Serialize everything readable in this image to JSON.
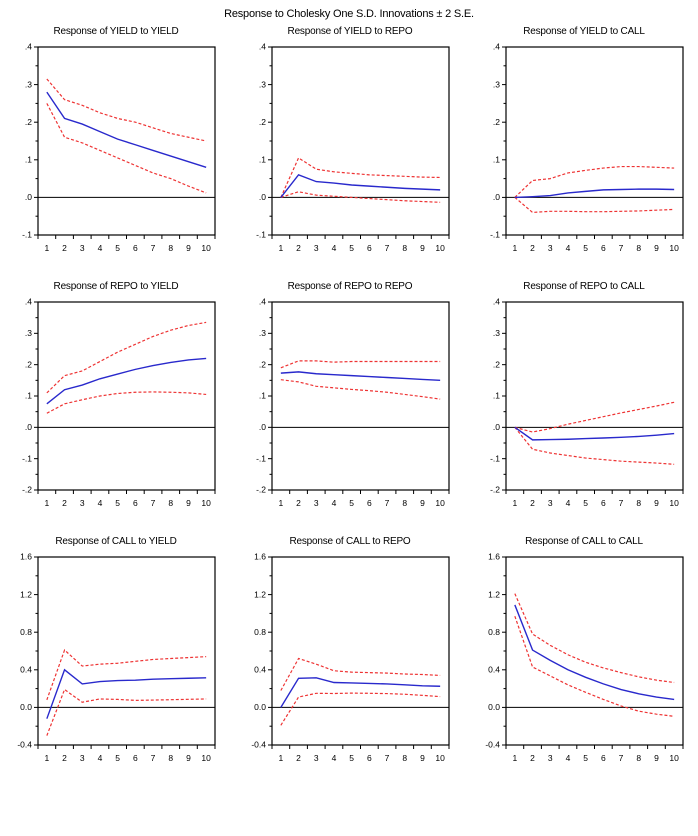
{
  "page": {
    "title": "Response to Cholesky One S.D. Innovations ± 2 S.E."
  },
  "style": {
    "response_color": "#2929cc",
    "band_color": "#ee3333",
    "axis_color": "#000000",
    "background_color": "#ffffff"
  },
  "chart_data": [
    {
      "type": "line",
      "title": "Response of YIELD to YIELD",
      "x": [
        1,
        2,
        3,
        4,
        5,
        6,
        7,
        8,
        9,
        10
      ],
      "ylim": [
        -0.1,
        0.4
      ],
      "yticks": [
        0.4,
        0.3,
        0.2,
        0.1,
        0.0,
        -0.1
      ],
      "ytick_labels": [
        ".4",
        ".3",
        ".2",
        ".1",
        ".0",
        "-.1"
      ],
      "xtick_labels": [
        "1",
        "2",
        "3",
        "4",
        "5",
        "6",
        "7",
        "8",
        "9",
        "10"
      ],
      "legend": "none",
      "grid": false,
      "series": [
        {
          "name": "response",
          "role": "center",
          "values": [
            0.28,
            0.21,
            0.195,
            0.175,
            0.155,
            0.14,
            0.125,
            0.11,
            0.095,
            0.08
          ]
        },
        {
          "name": "upper_2se",
          "role": "band",
          "values": [
            0.315,
            0.26,
            0.245,
            0.225,
            0.21,
            0.2,
            0.185,
            0.17,
            0.16,
            0.15
          ]
        },
        {
          "name": "lower_2se",
          "role": "band",
          "values": [
            0.25,
            0.16,
            0.145,
            0.125,
            0.105,
            0.085,
            0.065,
            0.05,
            0.03,
            0.012
          ]
        }
      ]
    },
    {
      "type": "line",
      "title": "Response of YIELD to REPO",
      "x": [
        1,
        2,
        3,
        4,
        5,
        6,
        7,
        8,
        9,
        10
      ],
      "ylim": [
        -0.1,
        0.4
      ],
      "yticks": [
        0.4,
        0.3,
        0.2,
        0.1,
        0.0,
        -0.1
      ],
      "ytick_labels": [
        ".4",
        ".3",
        ".2",
        ".1",
        ".0",
        "-.1"
      ],
      "xtick_labels": [
        "1",
        "2",
        "3",
        "4",
        "5",
        "6",
        "7",
        "8",
        "9",
        "10"
      ],
      "legend": "none",
      "grid": false,
      "series": [
        {
          "name": "response",
          "role": "center",
          "values": [
            0.0,
            0.06,
            0.042,
            0.038,
            0.033,
            0.03,
            0.027,
            0.024,
            0.022,
            0.02
          ]
        },
        {
          "name": "upper_2se",
          "role": "band",
          "values": [
            0.0,
            0.105,
            0.075,
            0.068,
            0.064,
            0.06,
            0.058,
            0.056,
            0.054,
            0.053
          ]
        },
        {
          "name": "lower_2se",
          "role": "band",
          "values": [
            0.0,
            0.015,
            0.006,
            0.003,
            0.0,
            -0.003,
            -0.006,
            -0.009,
            -0.011,
            -0.013
          ]
        }
      ]
    },
    {
      "type": "line",
      "title": "Response of YIELD to CALL",
      "x": [
        1,
        2,
        3,
        4,
        5,
        6,
        7,
        8,
        9,
        10
      ],
      "ylim": [
        -0.1,
        0.4
      ],
      "yticks": [
        0.4,
        0.3,
        0.2,
        0.1,
        0.0,
        -0.1
      ],
      "ytick_labels": [
        ".4",
        ".3",
        ".2",
        ".1",
        ".0",
        "-.1"
      ],
      "xtick_labels": [
        "1",
        "2",
        "3",
        "4",
        "5",
        "6",
        "7",
        "8",
        "9",
        "10"
      ],
      "legend": "none",
      "grid": false,
      "series": [
        {
          "name": "response",
          "role": "center",
          "values": [
            0.0,
            0.002,
            0.005,
            0.012,
            0.016,
            0.02,
            0.021,
            0.022,
            0.022,
            0.021
          ]
        },
        {
          "name": "upper_2se",
          "role": "band",
          "values": [
            0.0,
            0.045,
            0.05,
            0.065,
            0.072,
            0.078,
            0.082,
            0.082,
            0.08,
            0.078
          ]
        },
        {
          "name": "lower_2se",
          "role": "band",
          "values": [
            0.0,
            -0.04,
            -0.037,
            -0.037,
            -0.038,
            -0.038,
            -0.037,
            -0.036,
            -0.034,
            -0.032
          ]
        }
      ]
    },
    {
      "type": "line",
      "title": "Response of REPO to YIELD",
      "x": [
        1,
        2,
        3,
        4,
        5,
        6,
        7,
        8,
        9,
        10
      ],
      "ylim": [
        -0.2,
        0.4
      ],
      "yticks": [
        0.4,
        0.3,
        0.2,
        0.1,
        0.0,
        -0.1,
        -0.2
      ],
      "ytick_labels": [
        ".4",
        ".3",
        ".2",
        ".1",
        ".0",
        "-.1",
        "-.2"
      ],
      "xtick_labels": [
        "1",
        "2",
        "3",
        "4",
        "5",
        "6",
        "7",
        "8",
        "9",
        "10"
      ],
      "legend": "none",
      "grid": false,
      "series": [
        {
          "name": "response",
          "role": "center",
          "values": [
            0.075,
            0.12,
            0.135,
            0.155,
            0.17,
            0.185,
            0.197,
            0.207,
            0.215,
            0.22
          ]
        },
        {
          "name": "upper_2se",
          "role": "band",
          "values": [
            0.11,
            0.165,
            0.18,
            0.21,
            0.24,
            0.265,
            0.29,
            0.31,
            0.325,
            0.335
          ]
        },
        {
          "name": "lower_2se",
          "role": "band",
          "values": [
            0.045,
            0.075,
            0.088,
            0.1,
            0.108,
            0.112,
            0.113,
            0.112,
            0.11,
            0.105
          ]
        }
      ]
    },
    {
      "type": "line",
      "title": "Response of REPO to REPO",
      "x": [
        1,
        2,
        3,
        4,
        5,
        6,
        7,
        8,
        9,
        10
      ],
      "ylim": [
        -0.2,
        0.4
      ],
      "yticks": [
        0.4,
        0.3,
        0.2,
        0.1,
        0.0,
        -0.1,
        -0.2
      ],
      "ytick_labels": [
        ".4",
        ".3",
        ".2",
        ".1",
        ".0",
        "-.1",
        "-.2"
      ],
      "xtick_labels": [
        "1",
        "2",
        "3",
        "4",
        "5",
        "6",
        "7",
        "8",
        "9",
        "10"
      ],
      "legend": "none",
      "grid": false,
      "series": [
        {
          "name": "response",
          "role": "center",
          "values": [
            0.173,
            0.177,
            0.171,
            0.168,
            0.165,
            0.162,
            0.159,
            0.156,
            0.153,
            0.15
          ]
        },
        {
          "name": "upper_2se",
          "role": "band",
          "values": [
            0.19,
            0.212,
            0.212,
            0.208,
            0.21,
            0.21,
            0.21,
            0.21,
            0.21,
            0.21
          ]
        },
        {
          "name": "lower_2se",
          "role": "band",
          "values": [
            0.152,
            0.145,
            0.131,
            0.126,
            0.121,
            0.117,
            0.112,
            0.105,
            0.098,
            0.09
          ]
        }
      ]
    },
    {
      "type": "line",
      "title": "Response of REPO to CALL",
      "x": [
        1,
        2,
        3,
        4,
        5,
        6,
        7,
        8,
        9,
        10
      ],
      "ylim": [
        -0.2,
        0.4
      ],
      "yticks": [
        0.4,
        0.3,
        0.2,
        0.1,
        0.0,
        -0.1,
        -0.2
      ],
      "ytick_labels": [
        ".4",
        ".3",
        ".2",
        ".1",
        ".0",
        "-.1",
        "-.2"
      ],
      "xtick_labels": [
        "1",
        "2",
        "3",
        "4",
        "5",
        "6",
        "7",
        "8",
        "9",
        "10"
      ],
      "legend": "none",
      "grid": false,
      "series": [
        {
          "name": "response",
          "role": "center",
          "values": [
            0.0,
            -0.04,
            -0.039,
            -0.038,
            -0.036,
            -0.034,
            -0.032,
            -0.029,
            -0.025,
            -0.02
          ]
        },
        {
          "name": "upper_2se",
          "role": "band",
          "values": [
            0.0,
            -0.015,
            -0.004,
            0.01,
            0.022,
            0.034,
            0.046,
            0.057,
            0.068,
            0.08
          ]
        },
        {
          "name": "lower_2se",
          "role": "band",
          "values": [
            0.0,
            -0.07,
            -0.082,
            -0.09,
            -0.098,
            -0.103,
            -0.108,
            -0.111,
            -0.114,
            -0.118
          ]
        }
      ]
    },
    {
      "type": "line",
      "title": "Response of CALL to YIELD",
      "x": [
        1,
        2,
        3,
        4,
        5,
        6,
        7,
        8,
        9,
        10
      ],
      "ylim": [
        -0.4,
        1.6
      ],
      "yticks": [
        1.6,
        1.2,
        0.8,
        0.4,
        0.0,
        -0.4
      ],
      "ytick_labels": [
        "1.6",
        "1.2",
        "0.8",
        "0.4",
        "0.0",
        "-0.4"
      ],
      "xtick_labels": [
        "1",
        "2",
        "3",
        "4",
        "5",
        "6",
        "7",
        "8",
        "9",
        "10"
      ],
      "legend": "none",
      "grid": false,
      "series": [
        {
          "name": "response",
          "role": "center",
          "values": [
            -0.12,
            0.4,
            0.25,
            0.275,
            0.285,
            0.29,
            0.3,
            0.305,
            0.31,
            0.315
          ]
        },
        {
          "name": "upper_2se",
          "role": "band",
          "values": [
            0.08,
            0.61,
            0.44,
            0.46,
            0.47,
            0.49,
            0.51,
            0.52,
            0.53,
            0.54
          ]
        },
        {
          "name": "lower_2se",
          "role": "band",
          "values": [
            -0.3,
            0.19,
            0.055,
            0.09,
            0.085,
            0.075,
            0.078,
            0.082,
            0.086,
            0.09
          ]
        }
      ]
    },
    {
      "type": "line",
      "title": "Response of CALL to REPO",
      "x": [
        1,
        2,
        3,
        4,
        5,
        6,
        7,
        8,
        9,
        10
      ],
      "ylim": [
        -0.4,
        1.6
      ],
      "yticks": [
        1.6,
        1.2,
        0.8,
        0.4,
        0.0,
        -0.4
      ],
      "ytick_labels": [
        "1.6",
        "1.2",
        "0.8",
        "0.4",
        "0.0",
        "-0.4"
      ],
      "xtick_labels": [
        "1",
        "2",
        "3",
        "4",
        "5",
        "6",
        "7",
        "8",
        "9",
        "10"
      ],
      "legend": "none",
      "grid": false,
      "series": [
        {
          "name": "response",
          "role": "center",
          "values": [
            0.0,
            0.31,
            0.315,
            0.265,
            0.26,
            0.255,
            0.25,
            0.24,
            0.23,
            0.225
          ]
        },
        {
          "name": "upper_2se",
          "role": "band",
          "values": [
            0.18,
            0.52,
            0.46,
            0.39,
            0.375,
            0.37,
            0.365,
            0.355,
            0.35,
            0.34
          ]
        },
        {
          "name": "lower_2se",
          "role": "band",
          "values": [
            -0.19,
            0.11,
            0.15,
            0.148,
            0.152,
            0.15,
            0.147,
            0.14,
            0.128,
            0.115
          ]
        }
      ]
    },
    {
      "type": "line",
      "title": "Response of CALL to CALL",
      "x": [
        1,
        2,
        3,
        4,
        5,
        6,
        7,
        8,
        9,
        10
      ],
      "ylim": [
        -0.4,
        1.6
      ],
      "yticks": [
        1.6,
        1.2,
        0.8,
        0.4,
        0.0,
        -0.4
      ],
      "ytick_labels": [
        "1.6",
        "1.2",
        "0.8",
        "0.4",
        "0.0",
        "-0.4"
      ],
      "xtick_labels": [
        "1",
        "2",
        "3",
        "4",
        "5",
        "6",
        "7",
        "8",
        "9",
        "10"
      ],
      "legend": "none",
      "grid": false,
      "series": [
        {
          "name": "response",
          "role": "center",
          "values": [
            1.09,
            0.61,
            0.5,
            0.4,
            0.32,
            0.25,
            0.19,
            0.145,
            0.11,
            0.085
          ]
        },
        {
          "name": "upper_2se",
          "role": "band",
          "values": [
            1.21,
            0.78,
            0.66,
            0.56,
            0.48,
            0.42,
            0.37,
            0.325,
            0.29,
            0.265
          ]
        },
        {
          "name": "lower_2se",
          "role": "band",
          "values": [
            0.97,
            0.43,
            0.335,
            0.24,
            0.16,
            0.085,
            0.015,
            -0.04,
            -0.072,
            -0.095
          ]
        }
      ]
    }
  ]
}
